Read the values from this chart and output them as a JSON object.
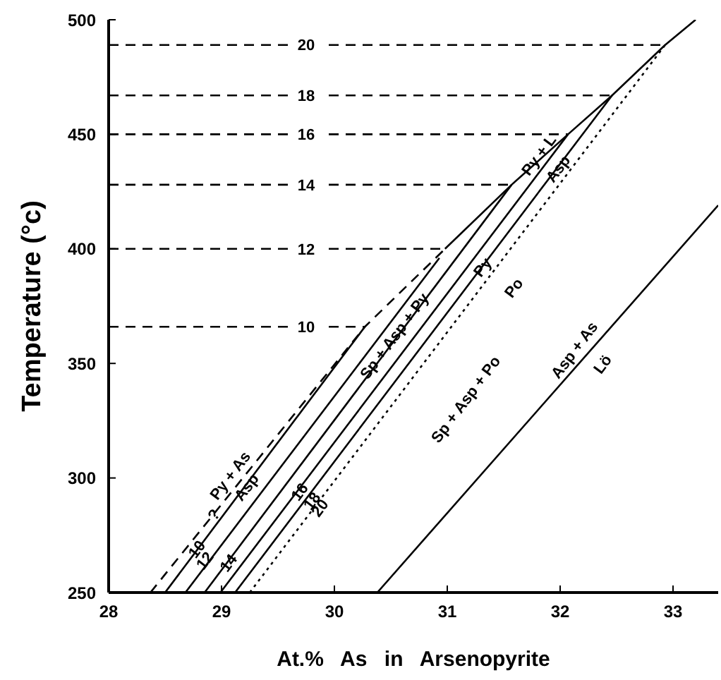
{
  "chart_data": {
    "type": "line",
    "xlabel": "At.% As in Arsenopyrite",
    "ylabel": "Temperature (°c)",
    "xlim": [
      28,
      33.4
    ],
    "xticks": [
      28,
      29,
      30,
      31,
      32,
      33
    ],
    "ylim": [
      250,
      500
    ],
    "yticks": [
      250,
      300,
      350,
      400,
      450,
      500
    ],
    "grid": false,
    "marker": "none",
    "series": [
      {
        "color": "#000000",
        "line_style": "dashed",
        "x": [
          28.37,
          30.27,
          30.98
        ],
        "values": [
          250,
          366,
          400
        ]
      },
      {
        "color": "#000000",
        "line_style": "solid",
        "x": [
          30.98,
          31.57,
          32.07,
          32.46,
          32.93,
          33.2
        ],
        "values": [
          400,
          428,
          450,
          467,
          489,
          500
        ]
      },
      {
        "color": "#000000",
        "line_style": "solid",
        "x": [
          28.5,
          30.27
        ],
        "values": [
          250,
          366
        ]
      },
      {
        "color": "#000000",
        "line_style": "solid",
        "x": [
          28.68,
          30.93
        ],
        "values": [
          250,
          396
        ]
      },
      {
        "color": "#000000",
        "line_style": "solid",
        "x": [
          28.85,
          31.57
        ],
        "values": [
          250,
          428
        ]
      },
      {
        "color": "#000000",
        "line_style": "solid",
        "x": [
          28.99,
          32.07
        ],
        "values": [
          250,
          450
        ]
      },
      {
        "color": "#000000",
        "line_style": "solid",
        "x": [
          29.12,
          32.46
        ],
        "values": [
          250,
          467
        ]
      },
      {
        "color": "#000000",
        "line_style": "dotted",
        "x": [
          29.25,
          32.93
        ],
        "values": [
          250,
          489
        ]
      },
      {
        "color": "#000000",
        "line_style": "solid",
        "x": [
          30.38,
          33.4
        ],
        "values": [
          250,
          419
        ]
      },
      {
        "name": "10",
        "color": "#000000",
        "line_style": "dashed",
        "x": [
          28,
          30.27
        ],
        "values": [
          366,
          366
        ]
      },
      {
        "name": "12",
        "color": "#000000",
        "line_style": "dashed",
        "x": [
          28,
          30.98
        ],
        "values": [
          400,
          400
        ]
      },
      {
        "name": "14",
        "color": "#000000",
        "line_style": "dashed",
        "x": [
          28,
          31.57
        ],
        "values": [
          428,
          428
        ]
      },
      {
        "name": "16",
        "color": "#000000",
        "line_style": "dashed",
        "x": [
          28,
          32.07
        ],
        "values": [
          450,
          450
        ]
      },
      {
        "name": "18",
        "color": "#000000",
        "line_style": "dashed",
        "x": [
          28,
          32.46
        ],
        "values": [
          467,
          467
        ]
      },
      {
        "name": "20",
        "color": "#000000",
        "line_style": "dashed",
        "x": [
          28,
          32.93
        ],
        "values": [
          489,
          489
        ]
      }
    ],
    "annotations": [
      {
        "text": "Py + L",
        "x": 31.81,
        "y": 441
      },
      {
        "text": "Asp",
        "x": 31.98,
        "y": 435
      },
      "Py + As",
      {
        "text": "Asp",
        "x": 29.22,
        "y": 296
      },
      {
        "text": "?",
        "x": 28.93,
        "y": 284
      },
      {
        "text": "Sp + Asp + Py",
        "x": 30.53,
        "y": 362
      },
      {
        "text": "Py",
        "x": 31.31,
        "y": 392
      },
      "Po",
      "Sp + Asp + Po",
      "Asp + As",
      "Lö",
      {
        "text": "10",
        "x": 28.78,
        "y": 269
      },
      {
        "text": "12",
        "x": 28.85,
        "y": 264
      },
      {
        "text": "14",
        "x": 29.06,
        "y": 263
      },
      {
        "text": "16",
        "x": 29.69,
        "y": 294
      },
      {
        "text": "18",
        "x": 29.8,
        "y": 290
      },
      {
        "text": "20",
        "x": 29.87,
        "y": 287
      }
    ]
  }
}
